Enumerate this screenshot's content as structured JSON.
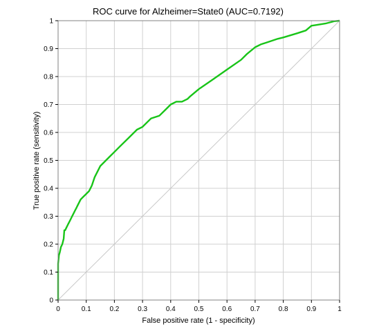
{
  "chart_data": {
    "type": "line",
    "title": "ROC curve for Alzheimer=State0 (AUC=0.7192)",
    "xlabel": "False positive rate (1 - specificity)",
    "ylabel": "True positive rate (sensitivity)",
    "xlim": [
      0,
      1
    ],
    "ylim": [
      0,
      1
    ],
    "xticks": [
      "0",
      "0.1",
      "0.2",
      "0.3",
      "0.4",
      "0.5",
      "0.6",
      "0.7",
      "0.8",
      "0.9",
      "1"
    ],
    "yticks": [
      "0",
      "0.1",
      "0.2",
      "0.3",
      "0.4",
      "0.5",
      "0.6",
      "0.7",
      "0.8",
      "0.9",
      "1"
    ],
    "grid": true,
    "legend": "none",
    "colors": {
      "curve": "#18c418",
      "diagonal": "#c8c8c8",
      "grid": "#d0d0d0",
      "frame": "#808080"
    },
    "series": [
      {
        "x": [
          0,
          0,
          0.003,
          0.006,
          0.01,
          0.015,
          0.02,
          0.022,
          0.025,
          0.03,
          0.035,
          0.04,
          0.045,
          0.05,
          0.055,
          0.06,
          0.065,
          0.07,
          0.08,
          0.09,
          0.1,
          0.11,
          0.12,
          0.13,
          0.14,
          0.15,
          0.16,
          0.17,
          0.18,
          0.2,
          0.22,
          0.25,
          0.28,
          0.3,
          0.33,
          0.36,
          0.38,
          0.39,
          0.4,
          0.42,
          0.44,
          0.46,
          0.47,
          0.5,
          0.55,
          0.6,
          0.65,
          0.67,
          0.7,
          0.72,
          0.75,
          0.78,
          0.8,
          0.85,
          0.88,
          0.9,
          0.92,
          0.95,
          0.97,
          0.98,
          1
        ],
        "y": [
          0,
          0.13,
          0.16,
          0.17,
          0.19,
          0.2,
          0.22,
          0.25,
          0.25,
          0.26,
          0.27,
          0.28,
          0.29,
          0.3,
          0.31,
          0.32,
          0.33,
          0.34,
          0.36,
          0.37,
          0.38,
          0.39,
          0.41,
          0.44,
          0.46,
          0.48,
          0.49,
          0.5,
          0.51,
          0.53,
          0.55,
          0.58,
          0.61,
          0.62,
          0.65,
          0.66,
          0.68,
          0.69,
          0.7,
          0.71,
          0.71,
          0.72,
          0.73,
          0.755,
          0.79,
          0.825,
          0.86,
          0.88,
          0.905,
          0.915,
          0.925,
          0.935,
          0.94,
          0.955,
          0.965,
          0.982,
          0.985,
          0.99,
          0.995,
          0.998,
          1
        ]
      }
    ]
  }
}
